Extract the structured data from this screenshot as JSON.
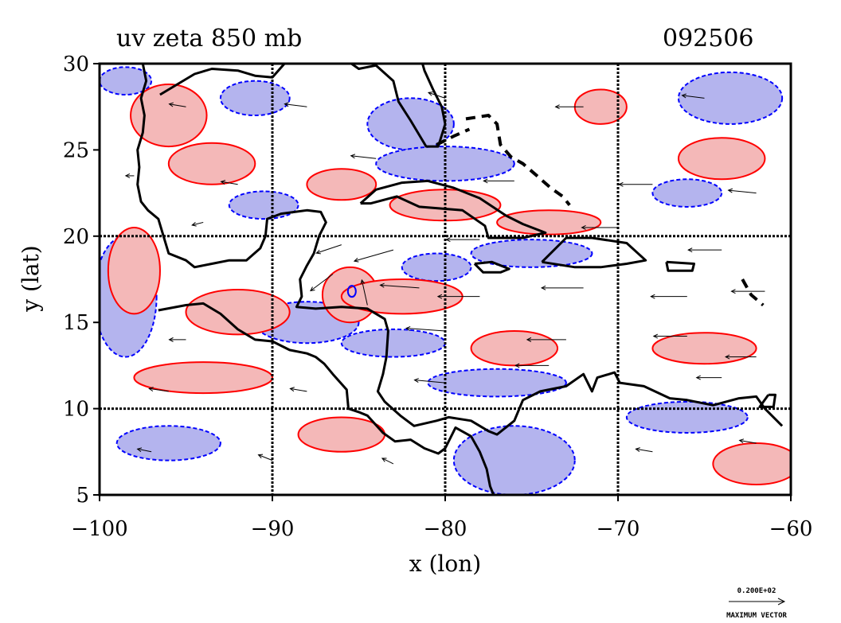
{
  "chart_data": {
    "type": "contour-vector-map",
    "title": "uv zeta 850 mb",
    "date_label": "092506",
    "xlabel": "x (lon)",
    "ylabel": "y (lat)",
    "xlim": [
      -100,
      -60
    ],
    "ylim": [
      5,
      30
    ],
    "x_ticks": [
      -100,
      -90,
      -80,
      -70,
      -60
    ],
    "x_tick_labels": [
      "−100",
      "−90",
      "−80",
      "−70",
      "−60"
    ],
    "y_ticks": [
      5,
      10,
      15,
      20,
      25,
      30
    ],
    "y_tick_labels": [
      "5",
      "10",
      "15",
      "20",
      "25",
      "30"
    ],
    "gridlines_lon": [
      -90,
      -80,
      -70
    ],
    "gridlines_lat": [
      10,
      20
    ],
    "grid": true,
    "legend": {
      "vector_magnitude": "0.200E+02",
      "vector_label": "MAXIMUM VECTOR",
      "placement": "bottom-right"
    },
    "fields": {
      "positive_vorticity_color": "#f4b8b8",
      "positive_contour_color": "#ff0000",
      "negative_vorticity_color": "#b4b4ee",
      "negative_contour_color": "#0000ff",
      "coastline_color": "#000000"
    },
    "cyclone_center": {
      "lon": -85.4,
      "lat": 16.8
    },
    "positive_regions": [
      {
        "lon": -96.0,
        "lat": 27.0,
        "rx": 2.2,
        "ry": 1.8
      },
      {
        "lon": -93.5,
        "lat": 24.2,
        "rx": 2.5,
        "ry": 1.2
      },
      {
        "lon": -86.0,
        "lat": 23.0,
        "rx": 2.0,
        "ry": 0.9
      },
      {
        "lon": -80.0,
        "lat": 21.8,
        "rx": 3.2,
        "ry": 0.9
      },
      {
        "lon": -74.0,
        "lat": 20.8,
        "rx": 3.0,
        "ry": 0.7
      },
      {
        "lon": -85.5,
        "lat": 16.6,
        "rx": 1.6,
        "ry": 1.6
      },
      {
        "lon": -92.0,
        "lat": 15.6,
        "rx": 3.0,
        "ry": 1.3
      },
      {
        "lon": -82.5,
        "lat": 16.5,
        "rx": 3.5,
        "ry": 1.0
      },
      {
        "lon": -76.0,
        "lat": 13.5,
        "rx": 2.5,
        "ry": 1.0
      },
      {
        "lon": -94.0,
        "lat": 11.8,
        "rx": 4.0,
        "ry": 0.9
      },
      {
        "lon": -86.0,
        "lat": 8.5,
        "rx": 2.5,
        "ry": 1.0
      },
      {
        "lon": -65.0,
        "lat": 13.5,
        "rx": 3.0,
        "ry": 0.9
      },
      {
        "lon": -64.0,
        "lat": 24.5,
        "rx": 2.5,
        "ry": 1.2
      },
      {
        "lon": -71.0,
        "lat": 27.5,
        "rx": 1.5,
        "ry": 1.0
      },
      {
        "lon": -62.0,
        "lat": 6.8,
        "rx": 2.5,
        "ry": 1.2
      },
      {
        "lon": -98.0,
        "lat": 18.0,
        "rx": 1.5,
        "ry": 2.5
      }
    ],
    "negative_regions": [
      {
        "lon": -98.5,
        "lat": 29.0,
        "rx": 1.5,
        "ry": 0.8
      },
      {
        "lon": -82.0,
        "lat": 26.5,
        "rx": 2.5,
        "ry": 1.5
      },
      {
        "lon": -80.0,
        "lat": 24.2,
        "rx": 4.0,
        "ry": 1.0
      },
      {
        "lon": -90.5,
        "lat": 21.8,
        "rx": 2.0,
        "ry": 0.8
      },
      {
        "lon": -75.0,
        "lat": 19.0,
        "rx": 3.5,
        "ry": 0.8
      },
      {
        "lon": -80.5,
        "lat": 18.2,
        "rx": 2.0,
        "ry": 0.8
      },
      {
        "lon": -98.5,
        "lat": 16.5,
        "rx": 1.8,
        "ry": 3.5
      },
      {
        "lon": -88.0,
        "lat": 15.0,
        "rx": 3.0,
        "ry": 1.2
      },
      {
        "lon": -83.0,
        "lat": 13.8,
        "rx": 3.0,
        "ry": 0.8
      },
      {
        "lon": -77.0,
        "lat": 11.5,
        "rx": 4.0,
        "ry": 0.8
      },
      {
        "lon": -76.0,
        "lat": 7.0,
        "rx": 3.5,
        "ry": 2.0
      },
      {
        "lon": -96.0,
        "lat": 8.0,
        "rx": 3.0,
        "ry": 1.0
      },
      {
        "lon": -66.0,
        "lat": 9.5,
        "rx": 3.5,
        "ry": 0.9
      },
      {
        "lon": -63.5,
        "lat": 28.0,
        "rx": 3.0,
        "ry": 1.5
      },
      {
        "lon": -66.0,
        "lat": 22.5,
        "rx": 2.0,
        "ry": 0.8
      },
      {
        "lon": -91.0,
        "lat": 28.0,
        "rx": 2.0,
        "ry": 1.0
      }
    ],
    "coastlines": [
      [
        [
          -97.5,
          30
        ],
        [
          -97.3,
          29
        ],
        [
          -97.6,
          28
        ],
        [
          -97.4,
          27
        ],
        [
          -97.5,
          26
        ],
        [
          -97.8,
          25
        ],
        [
          -97.7,
          24
        ],
        [
          -97.8,
          23
        ],
        [
          -97.6,
          22
        ],
        [
          -97.2,
          21.5
        ],
        [
          -96.6,
          21
        ],
        [
          -96.3,
          20
        ],
        [
          -96,
          19
        ],
        [
          -95,
          18.6
        ],
        [
          -94.5,
          18.2
        ],
        [
          -93.5,
          18.4
        ],
        [
          -92.5,
          18.6
        ],
        [
          -91.5,
          18.6
        ],
        [
          -90.7,
          19.3
        ],
        [
          -90.4,
          20
        ],
        [
          -90.3,
          21
        ],
        [
          -89.5,
          21.3
        ],
        [
          -88,
          21.5
        ],
        [
          -87.2,
          21.4
        ],
        [
          -86.9,
          20.8
        ],
        [
          -87.3,
          20
        ],
        [
          -87.6,
          19
        ],
        [
          -88,
          18.3
        ],
        [
          -88.4,
          17.5
        ],
        [
          -88.3,
          16.5
        ],
        [
          -88.6,
          15.9
        ],
        [
          -87.5,
          15.8
        ],
        [
          -86,
          15.9
        ],
        [
          -84.5,
          15.8
        ],
        [
          -83.5,
          15.2
        ],
        [
          -83.3,
          14.5
        ],
        [
          -83.4,
          13
        ],
        [
          -83.6,
          12
        ],
        [
          -83.9,
          11
        ],
        [
          -83.5,
          10.4
        ],
        [
          -82.6,
          9.6
        ],
        [
          -81.8,
          9
        ],
        [
          -80.5,
          9.3
        ],
        [
          -79.8,
          9.5
        ],
        [
          -78.5,
          9.3
        ],
        [
          -77.5,
          8.7
        ],
        [
          -77,
          8.5
        ],
        [
          -76,
          9.3
        ],
        [
          -75.5,
          10.5
        ],
        [
          -74.5,
          11
        ],
        [
          -73,
          11.3
        ],
        [
          -72,
          12
        ],
        [
          -71.5,
          11
        ],
        [
          -71.2,
          11.8
        ],
        [
          -70.2,
          12.1
        ],
        [
          -69.9,
          11.5
        ],
        [
          -68.5,
          11.3
        ],
        [
          -67,
          10.6
        ],
        [
          -66,
          10.5
        ],
        [
          -64.5,
          10.2
        ],
        [
          -63,
          10.6
        ],
        [
          -62,
          10.7
        ],
        [
          -61.5,
          10
        ],
        [
          -60.5,
          9
        ]
      ],
      [
        [
          -96.6,
          15.7
        ],
        [
          -95,
          16
        ],
        [
          -94,
          16.1
        ],
        [
          -93,
          15.5
        ],
        [
          -92,
          14.6
        ],
        [
          -91,
          14
        ],
        [
          -90,
          13.9
        ],
        [
          -89,
          13.4
        ],
        [
          -88,
          13.2
        ],
        [
          -87.5,
          13
        ],
        [
          -87,
          12.6
        ],
        [
          -86.5,
          12
        ],
        [
          -85.7,
          11.1
        ],
        [
          -85.6,
          10
        ],
        [
          -85,
          9.8
        ],
        [
          -84.5,
          9.6
        ],
        [
          -83.6,
          8.6
        ],
        [
          -82.9,
          8.1
        ],
        [
          -82,
          8.2
        ],
        [
          -81.2,
          7.7
        ],
        [
          -80.4,
          7.4
        ],
        [
          -80,
          7.7
        ],
        [
          -79.4,
          8.9
        ],
        [
          -78.5,
          8.4
        ],
        [
          -78,
          7.5
        ],
        [
          -77.6,
          6.5
        ],
        [
          -77.4,
          5.5
        ],
        [
          -77.2,
          5
        ]
      ],
      [
        [
          -89.3,
          30
        ],
        [
          -90,
          29.2
        ],
        [
          -91,
          29.3
        ],
        [
          -92,
          29.6
        ],
        [
          -93.5,
          29.7
        ],
        [
          -94.5,
          29.4
        ],
        [
          -95.5,
          28.8
        ],
        [
          -96.5,
          28.2
        ]
      ],
      [
        [
          -87.5,
          30.3
        ],
        [
          -86,
          30.4
        ],
        [
          -85,
          29.7
        ],
        [
          -84,
          29.9
        ],
        [
          -83,
          29
        ],
        [
          -82.7,
          27.8
        ],
        [
          -82,
          26.7
        ],
        [
          -81.1,
          25.2
        ],
        [
          -80.4,
          25.2
        ],
        [
          -80,
          26.5
        ],
        [
          -80.2,
          27.5
        ],
        [
          -80.7,
          28.5
        ],
        [
          -81.2,
          29.6
        ],
        [
          -81.4,
          30.3
        ]
      ],
      [
        [
          -84.9,
          21.9
        ],
        [
          -84,
          22.7
        ],
        [
          -82.5,
          23.1
        ],
        [
          -81,
          23.2
        ],
        [
          -79.5,
          22.8
        ],
        [
          -78,
          22.2
        ],
        [
          -76.5,
          21.2
        ],
        [
          -75.5,
          20.7
        ],
        [
          -74.2,
          20.2
        ],
        [
          -75.5,
          19.9
        ],
        [
          -77.5,
          19.9
        ],
        [
          -77.7,
          20.6
        ],
        [
          -79,
          21.5
        ],
        [
          -81.5,
          21.7
        ],
        [
          -82.8,
          22.3
        ],
        [
          -84.3,
          21.9
        ],
        [
          -84.9,
          21.9
        ]
      ],
      [
        [
          -78.3,
          18.4
        ],
        [
          -77.3,
          18.5
        ],
        [
          -76.3,
          18.1
        ],
        [
          -76.8,
          17.9
        ],
        [
          -77.8,
          17.9
        ],
        [
          -78.3,
          18.4
        ]
      ],
      [
        [
          -74.4,
          18.5
        ],
        [
          -73,
          19.9
        ],
        [
          -71.5,
          19.9
        ],
        [
          -69.5,
          19.6
        ],
        [
          -68.4,
          18.6
        ],
        [
          -69.5,
          18.4
        ],
        [
          -71,
          18.2
        ],
        [
          -72.5,
          18.2
        ],
        [
          -74.4,
          18.5
        ]
      ],
      [
        [
          -67.2,
          18.5
        ],
        [
          -65.6,
          18.4
        ],
        [
          -65.7,
          18
        ],
        [
          -67.1,
          18
        ],
        [
          -67.2,
          18.5
        ]
      ],
      [
        [
          -61.3,
          10.8
        ],
        [
          -60.9,
          10.8
        ],
        [
          -61,
          10.1
        ],
        [
          -61.8,
          10.1
        ],
        [
          -61.3,
          10.8
        ]
      ]
    ],
    "dashed_coast": [
      [
        [
          -78.8,
          26.8
        ],
        [
          -77.5,
          27
        ],
        [
          -77,
          26.5
        ],
        [
          -76.8,
          25.3
        ],
        [
          -76.2,
          24.6
        ],
        [
          -75.5,
          24.2
        ],
        [
          -74.8,
          23.6
        ],
        [
          -73.9,
          22.8
        ],
        [
          -73.2,
          22.3
        ],
        [
          -72.8,
          21.8
        ]
      ],
      [
        [
          -80.5,
          25.3
        ],
        [
          -79.5,
          25.8
        ],
        [
          -78.6,
          26.2
        ]
      ],
      [
        [
          -62.8,
          17.5
        ],
        [
          -62.3,
          16.6
        ],
        [
          -61.6,
          16
        ]
      ]
    ],
    "wind_vectors": [
      {
        "lon": -95,
        "lat": 27.5,
        "u": -6,
        "v": 1
      },
      {
        "lon": -88,
        "lat": 27.5,
        "u": -8,
        "v": 1
      },
      {
        "lon": -80,
        "lat": 28,
        "u": -6,
        "v": 2
      },
      {
        "lon": -72,
        "lat": 27.5,
        "u": -10,
        "v": 0
      },
      {
        "lon": -65,
        "lat": 28,
        "u": -8,
        "v": 1
      },
      {
        "lon": -98,
        "lat": 23.5,
        "u": -3,
        "v": 0
      },
      {
        "lon": -92,
        "lat": 23,
        "u": -6,
        "v": 1
      },
      {
        "lon": -84,
        "lat": 24.5,
        "u": -9,
        "v": 1
      },
      {
        "lon": -76,
        "lat": 23.2,
        "u": -11,
        "v": 0
      },
      {
        "lon": -68,
        "lat": 23,
        "u": -12,
        "v": 0
      },
      {
        "lon": -62,
        "lat": 22.5,
        "u": -10,
        "v": 1
      },
      {
        "lon": -94,
        "lat": 20.8,
        "u": -4,
        "v": -1
      },
      {
        "lon": -86,
        "lat": 19.5,
        "u": -9,
        "v": -3
      },
      {
        "lon": -83,
        "lat": 19.2,
        "u": -14,
        "v": -4
      },
      {
        "lon": -78,
        "lat": 19.8,
        "u": -12,
        "v": 0
      },
      {
        "lon": -70,
        "lat": 20.5,
        "u": -13,
        "v": 0
      },
      {
        "lon": -64,
        "lat": 19.2,
        "u": -12,
        "v": 0
      },
      {
        "lon": -86.5,
        "lat": 17.8,
        "u": -8,
        "v": -6
      },
      {
        "lon": -84.5,
        "lat": 16,
        "u": -2,
        "v": 9
      },
      {
        "lon": -81.5,
        "lat": 17,
        "u": -14,
        "v": 1
      },
      {
        "lon": -78,
        "lat": 16.5,
        "u": -15,
        "v": 0
      },
      {
        "lon": -72,
        "lat": 17,
        "u": -15,
        "v": 0
      },
      {
        "lon": -66,
        "lat": 16.5,
        "u": -13,
        "v": 0
      },
      {
        "lon": -61.5,
        "lat": 16.8,
        "u": -12,
        "v": 0
      },
      {
        "lon": -95,
        "lat": 14,
        "u": -6,
        "v": 0
      },
      {
        "lon": -80,
        "lat": 14.5,
        "u": -14,
        "v": 1
      },
      {
        "lon": -73,
        "lat": 14,
        "u": -14,
        "v": 0
      },
      {
        "lon": -66,
        "lat": 14.2,
        "u": -12,
        "v": 0
      },
      {
        "lon": -62,
        "lat": 13,
        "u": -11,
        "v": 0
      },
      {
        "lon": -96,
        "lat": 11,
        "u": -7,
        "v": 1
      },
      {
        "lon": -88,
        "lat": 11,
        "u": -6,
        "v": 1
      },
      {
        "lon": -80,
        "lat": 11.5,
        "u": -11,
        "v": 1
      },
      {
        "lon": -74,
        "lat": 12.5,
        "u": -12,
        "v": 0
      },
      {
        "lon": -64,
        "lat": 11.8,
        "u": -9,
        "v": 0
      },
      {
        "lon": -97,
        "lat": 7.5,
        "u": -5,
        "v": 1
      },
      {
        "lon": -90,
        "lat": 7,
        "u": -5,
        "v": 2
      },
      {
        "lon": -83,
        "lat": 6.8,
        "u": -4,
        "v": 2
      },
      {
        "lon": -68,
        "lat": 7.5,
        "u": -6,
        "v": 1
      },
      {
        "lon": -62,
        "lat": 8,
        "u": -6,
        "v": 1
      }
    ]
  }
}
